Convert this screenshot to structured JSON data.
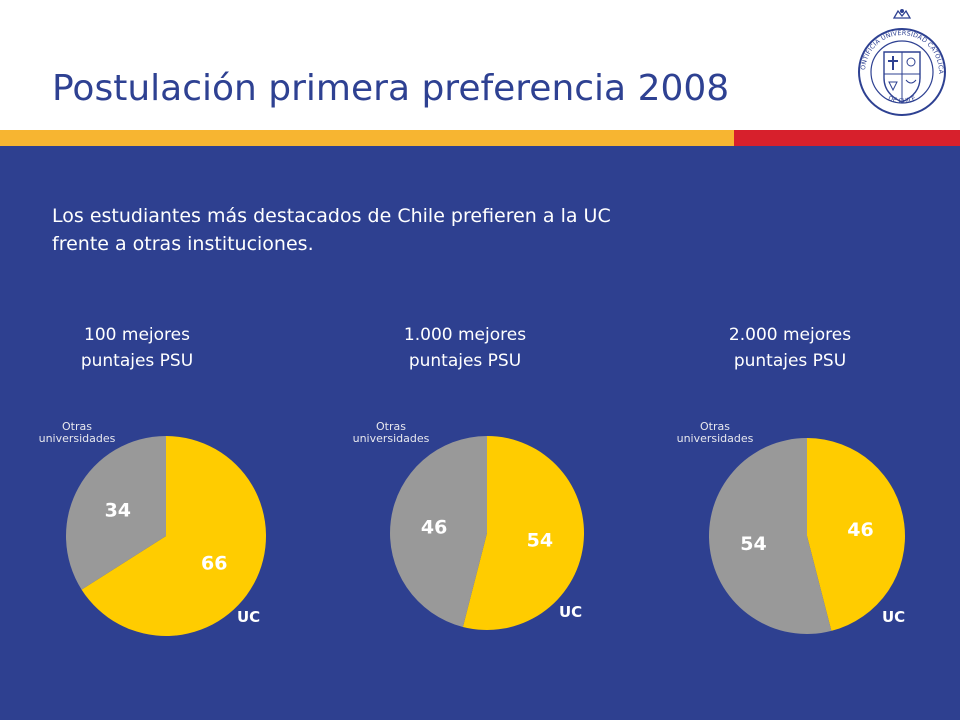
{
  "slide": {
    "title": "Postulación primera preferencia 2008",
    "subtitle_line1": "Los estudiantes más destacados de Chile prefieren a la UC",
    "subtitle_line2": "frente a otras instituciones.",
    "seal_icon": "pontificia-universidad-catolica-de-chile-seal-icon",
    "seal_text": "PONTIFICIA UNIVERSIDAD CATOLICA DE CHILE"
  },
  "colors": {
    "title": "#2e4192",
    "background": "#2e4090",
    "band_yellow": "#f7b531",
    "band_red": "#d7202c",
    "uc_slice": "#ffcc00",
    "other_slice": "#999999"
  },
  "chart_data": [
    {
      "type": "pie",
      "title_line1": "100 mejores",
      "title_line2": "puntajes PSU",
      "labels": [
        "UC",
        "Otras universidades"
      ],
      "legend_uc": "UC",
      "legend_other_line1": "Otras",
      "legend_other_line2": "universidades",
      "values": [
        66,
        34
      ],
      "colors": [
        "#ffcc00",
        "#999999"
      ]
    },
    {
      "type": "pie",
      "title_line1": "1.000 mejores",
      "title_line2": "puntajes PSU",
      "labels": [
        "UC",
        "Otras universidades"
      ],
      "legend_uc": "UC",
      "legend_other_line1": "Otras",
      "legend_other_line2": "universidades",
      "values": [
        54,
        46
      ],
      "colors": [
        "#ffcc00",
        "#999999"
      ]
    },
    {
      "type": "pie",
      "title_line1": "2.000 mejores",
      "title_line2": "puntajes PSU",
      "labels": [
        "UC",
        "Otras universidades"
      ],
      "legend_uc": "UC",
      "legend_other_line1": "Otras",
      "legend_other_line2": "universidades",
      "values": [
        46,
        54
      ],
      "colors": [
        "#ffcc00",
        "#999999"
      ]
    }
  ]
}
